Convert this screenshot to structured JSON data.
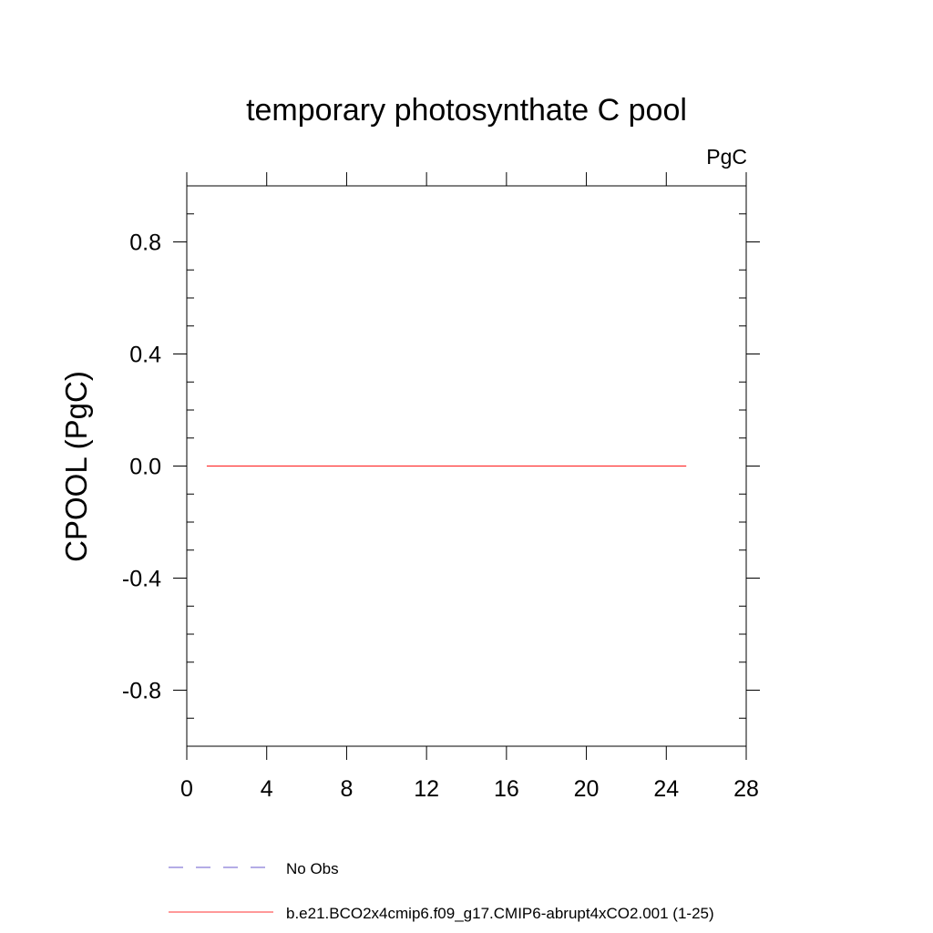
{
  "chart_data": {
    "type": "line",
    "title": "temporary photosynthate C pool",
    "units_label": "PgC",
    "ylabel": "CPOOL  (PgC)",
    "xlabel": "",
    "xlim": [
      0,
      28
    ],
    "ylim": [
      -1,
      1
    ],
    "x_ticks": [
      0,
      4,
      8,
      12,
      16,
      20,
      24,
      28
    ],
    "x_tick_labels": [
      "0",
      "4",
      "8",
      "12",
      "16",
      "20",
      "24",
      "28"
    ],
    "y_ticks": [
      0.8,
      0.4,
      0.0,
      -0.4,
      -0.8
    ],
    "y_tick_labels": [
      "0.8",
      "0.4",
      "0.0",
      "-0.4",
      "-0.8"
    ],
    "grid": false,
    "legend_position": "bottom",
    "series": [
      {
        "name": "No Obs",
        "color": "#6a5acd",
        "style": "dashed",
        "x": [],
        "y": []
      },
      {
        "name": "b.e21.BCO2x4cmip6.f09_g17.CMIP6-abrupt4xCO2.001 (1-25)",
        "color": "#ff3333",
        "style": "solid",
        "x": [
          1,
          25
        ],
        "y": [
          0,
          0
        ]
      }
    ]
  }
}
